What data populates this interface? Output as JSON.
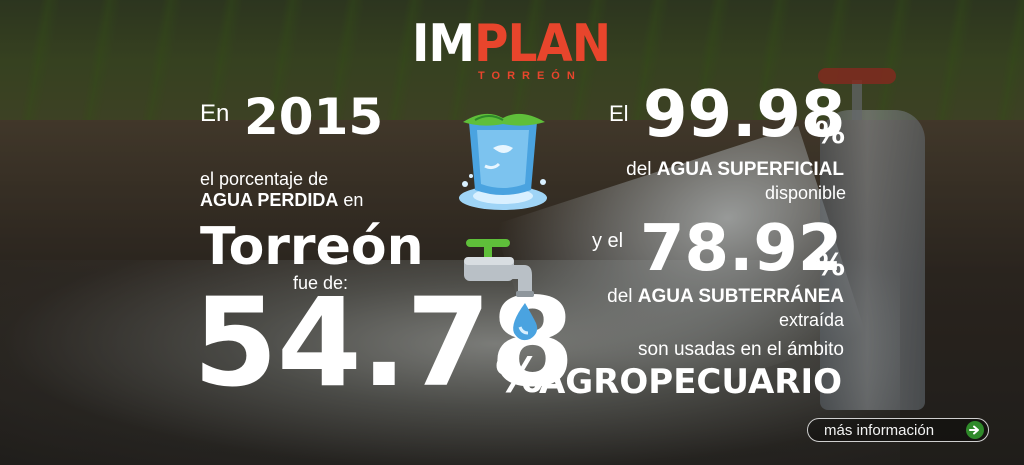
{
  "logo": {
    "main_a": "IM",
    "main_b": "PLAN",
    "sub": "TORREÓN"
  },
  "left": {
    "intro": "En",
    "year": "2015",
    "line1": "el porcentaje de",
    "line2_bold": "AGUA PERDIDA",
    "line2_rest": "en",
    "city": "Torreón",
    "line3": "fue de:",
    "value": "54.78",
    "pct": "%"
  },
  "right": {
    "intro1": "El",
    "surface_value": "99.98",
    "surface_pct": "%",
    "surface_line1_pre": "del",
    "surface_line1_bold": "AGUA SUPERFICIAL",
    "surface_line2": "disponible",
    "intro2": "y el",
    "ground_value": "78.92",
    "ground_pct": "%",
    "ground_line1_pre": "del",
    "ground_line1_bold": "AGUA SUBTERRÁNEA",
    "ground_line2": "extraída",
    "usage_line": "son usadas en el ámbito",
    "sector": "AGROPECUARIO"
  },
  "icons": {
    "glass": "water-glass-icon",
    "faucet": "faucet-icon",
    "arrow": "arrow-right-icon"
  },
  "button": {
    "label": "más información"
  },
  "colors": {
    "brand_red": "#e8452c",
    "arrow_green": "#2f8a2a",
    "water_blue": "#4aa3e0"
  }
}
